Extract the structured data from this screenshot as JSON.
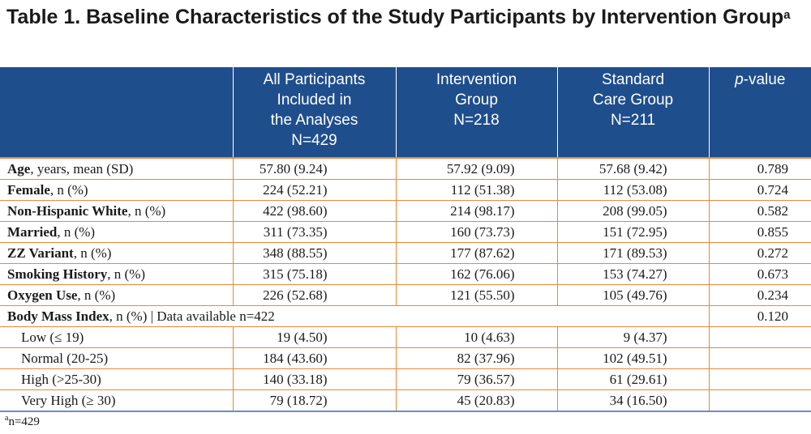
{
  "title": {
    "text": "Table 1. Baseline Characteristics of the Study Participants by Intervention Group",
    "superscript": "a"
  },
  "header": {
    "col1": [
      "All Participants",
      "Included in",
      "the Analyses",
      "N=429"
    ],
    "col2": [
      "Intervention",
      "Group",
      "N=218"
    ],
    "col3": [
      "Standard",
      "Care Group",
      "N=211"
    ],
    "col4_italic": "p",
    "col4_rest": "-value"
  },
  "rows": [
    {
      "bold": "Age",
      "rest": ", years, mean (SD)",
      "all": "57.80 (9.24)",
      "int": "57.92 (9.09)",
      "std": "57.68 (9.42)",
      "p": "0.789"
    },
    {
      "bold": "Female",
      "rest": ", n (%)",
      "all": "224 (52.21)",
      "int": "112 (51.38)",
      "std": "112 (53.08)",
      "p": "0.724"
    },
    {
      "bold": "Non-Hispanic White",
      "rest": ", n (%)",
      "all": "422 (98.60)",
      "int": "214 (98.17)",
      "std": "208 (99.05)",
      "p": "0.582"
    },
    {
      "bold": "Married",
      "rest": ", n (%)",
      "all": "311 (73.35)",
      "int": "160 (73.73)",
      "std": "151 (72.95)",
      "p": "0.855"
    },
    {
      "bold": "ZZ Variant",
      "rest": ", n (%)",
      "all": "348 (88.55)",
      "int": "177 (87.62)",
      "std": "171 (89.53)",
      "p": "0.272"
    },
    {
      "bold": "Smoking History",
      "rest": ", n (%)",
      "all": "315 (75.18)",
      "int": "162 (76.06)",
      "std": "153 (74.27)",
      "p": "0.673"
    },
    {
      "bold": "Oxygen Use",
      "rest": ", n (%)",
      "all": "226 (52.68)",
      "int": "121 (55.50)",
      "std": "105 (49.76)",
      "p": "0.234"
    }
  ],
  "bmi": {
    "bold": "Body Mass Index",
    "rest": ", n (%) | Data available n=422",
    "p": "0.120",
    "subrows": [
      {
        "label": "Low (≤ 19)",
        "all": "19 (4.50)",
        "int": "10 (4.63)",
        "std": "9 (4.37)"
      },
      {
        "label": "Normal (20-25)",
        "all": "184 (43.60)",
        "int": "82 (37.96)",
        "std": "102 (49.51)"
      },
      {
        "label": "High (>25-30)",
        "all": "140 (33.18)",
        "int": "79 (36.57)",
        "std": "61 (29.61)"
      },
      {
        "label": "Very High (≥ 30)",
        "all": "79 (18.72)",
        "int": "45 (20.83)",
        "std": "34 (16.50)"
      }
    ]
  },
  "footnote": {
    "superscript": "a",
    "text": "n=429"
  }
}
